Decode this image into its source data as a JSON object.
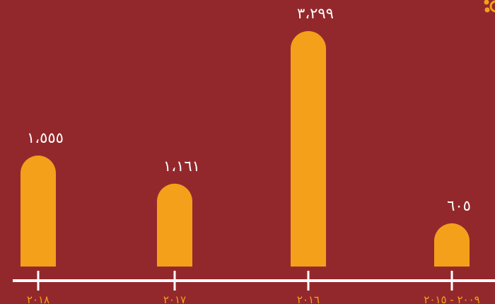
{
  "chart_data": {
    "type": "bar",
    "categories": [
      "٢٠١٨",
      "٢٠١٧",
      "٢٠١٦",
      "٢٠٠٩ - ٢٠١٥"
    ],
    "values": [
      1555,
      1161,
      3299,
      605
    ],
    "value_labels": [
      "١،٥٥٥",
      "١،١٦١",
      "٣،٢٩٩",
      "٦٠٥"
    ],
    "title": "",
    "xlabel": "",
    "ylabel": "",
    "ylim": [
      0,
      3299
    ],
    "grid": false,
    "legend": "none"
  },
  "colors": {
    "background": "#93282c",
    "bar": "#f5a01a",
    "axis": "#ffffff",
    "value_text": "#ffffff",
    "tick_text": "#f5a01a",
    "decoration": "#f5a01a"
  },
  "icons": {
    "corner_decoration": "dots-decoration-icon"
  }
}
